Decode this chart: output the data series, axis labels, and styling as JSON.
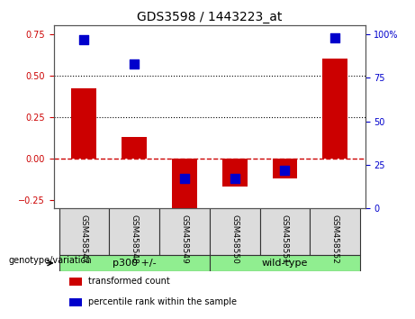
{
  "title": "GDS3598 / 1443223_at",
  "samples": [
    "GSM458547",
    "GSM458548",
    "GSM458549",
    "GSM458550",
    "GSM458551",
    "GSM458552"
  ],
  "transformed_count": [
    0.42,
    0.13,
    -0.3,
    -0.17,
    -0.12,
    0.6
  ],
  "percentile_rank": [
    97,
    83,
    17,
    17,
    22,
    98
  ],
  "ylim_left": [
    -0.3,
    0.8
  ],
  "ylim_right": [
    0,
    105
  ],
  "yticks_left": [
    -0.25,
    0,
    0.25,
    0.5,
    0.75
  ],
  "yticks_right": [
    0,
    25,
    50,
    75,
    100
  ],
  "yticklabels_right": [
    "0",
    "25",
    "50",
    "75",
    "100%"
  ],
  "hlines_dotted": [
    0.25,
    0.5
  ],
  "hline_dashed": 0,
  "groups": [
    {
      "label": "p300 +/-",
      "indices": [
        0,
        1,
        2
      ],
      "color": "#90EE90"
    },
    {
      "label": "wild-type",
      "indices": [
        3,
        4,
        5
      ],
      "color": "#90EE90"
    }
  ],
  "group_label_x": "genotype/variation",
  "bar_color": "#CC0000",
  "point_color": "#0000CC",
  "bg_color": "#DCDCDC",
  "plot_bg": "#FFFFFF",
  "title_color": "#000000",
  "left_tick_color": "#CC0000",
  "right_tick_color": "#0000CC",
  "zero_line_color": "#CC0000",
  "zero_line_style": "--",
  "bar_width": 0.5,
  "point_size": 50,
  "legend_items": [
    "transformed count",
    "percentile rank within the sample"
  ],
  "legend_colors": [
    "#CC0000",
    "#0000CC"
  ]
}
